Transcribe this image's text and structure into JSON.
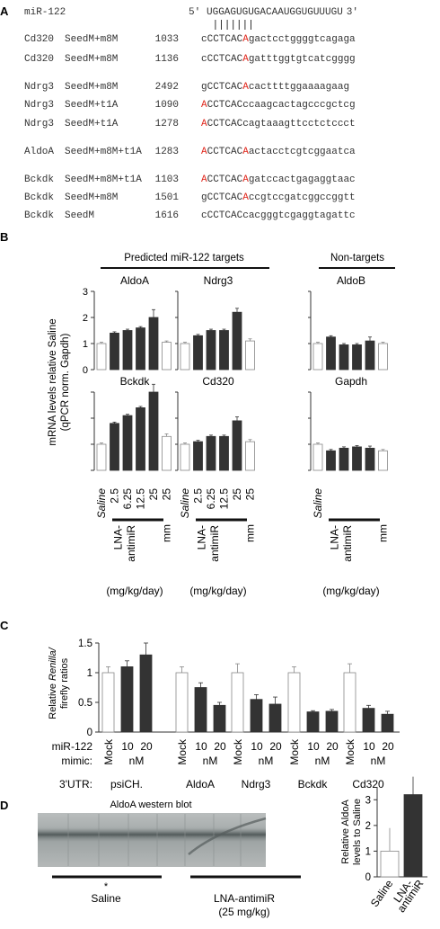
{
  "panelA": {
    "label": "A",
    "mir": {
      "name": "miR-122",
      "five": "5'",
      "seq": "UGGAGUGUGACAAUGGUGUUUGU",
      "three": "3'"
    },
    "rows": [
      {
        "gene": "Cd320",
        "type": "SeedM+m8M",
        "pos": "1033",
        "lower": "c",
        "seed": "CCTCAC",
        "red": "A",
        "rest": "gactcctggggtcagaga"
      },
      {
        "gene": "Cd320",
        "type": "SeedM+m8M",
        "pos": "1136",
        "lower": "c",
        "seed": "CCTCAC",
        "red": "A",
        "rest": "gatttggtgtcatcgggg"
      },
      {
        "gene": "Ndrg3",
        "type": "SeedM+m8M",
        "pos": "2492",
        "lower": "g",
        "seed": "CCTCAC",
        "red": "A",
        "rest": "cacttttggaaaagaag"
      },
      {
        "gene": "Ndrg3",
        "type": "SeedM+t1A",
        "pos": "1090",
        "lower": "",
        "seed": "CCTCAC",
        "red": "A",
        "rest": "ccaagcactagcccgctcg",
        "redFirst": true
      },
      {
        "gene": "Ndrg3",
        "type": "SeedM+t1A",
        "pos": "1278",
        "lower": "",
        "seed": "CCTCAC",
        "red": "A",
        "rest": "cagtaaagttcctctccct",
        "redFirst": true
      },
      {
        "gene": "AldoA",
        "type": "SeedM+m8M+t1A",
        "pos": "1283",
        "lower": "",
        "seed": "CCTCAC",
        "red": "A",
        "rest": "actacctcgtcggaatca",
        "both": true
      },
      {
        "gene": "Bckdk",
        "type": "SeedM+m8M+t1A",
        "pos": "1103",
        "lower": "",
        "seed": "CCTCAC",
        "red": "A",
        "rest": "gatccactgagaggtaac",
        "both": true
      },
      {
        "gene": "Bckdk",
        "type": "SeedM+m8M",
        "pos": "1501",
        "lower": "g",
        "seed": "CCTCAC",
        "red": "A",
        "rest": "ccgtccgatcggccggtt"
      },
      {
        "gene": "Bckdk",
        "type": "SeedM",
        "pos": "1616",
        "lower": "c",
        "seed": "CCTCAC",
        "red": "",
        "rest": "cacgggtcgaggtagattc"
      }
    ]
  },
  "panelB": {
    "label": "B",
    "group_targets": "Predicted miR-122 targets",
    "group_nontargets": "Non-targets",
    "ylabel1": "mRNA levels relative Saline",
    "ylabel2": "(qPCR norm. Gapdh)",
    "yticks": [
      "0",
      "1",
      "2",
      "3"
    ],
    "xcat": {
      "saline": "Saline",
      "lna1": "LNA-",
      "lna2": "antimiR",
      "mm": "mm",
      "doses": [
        "2.5",
        "6.25",
        "12.5",
        "25"
      ],
      "mmdose": "25"
    },
    "unit": "(mg/kg/day)"
  },
  "panelC": {
    "label": "C",
    "ylabel1a": "Relative ",
    "ylabel1b": "Renilla/",
    "ylabel2": "firefly ratios",
    "yticks": [
      "0",
      "0.5",
      "1",
      "1.5"
    ],
    "row1": "miR-122",
    "row2": "mimic:",
    "row3": "3'UTR:",
    "mock": "Mock",
    "d10": "10",
    "d20": "20",
    "nm": "nM",
    "utrs": [
      "psiCH.",
      "AldoA",
      "Ndrg3",
      "Bckdk",
      "Cd320"
    ]
  },
  "panelD": {
    "label": "D",
    "blot_title": "AldoA western blot",
    "asterisk": "*",
    "saline": "Saline",
    "lna": "LNA-antimiR",
    "lna_dose": "(25 mg/kg)",
    "ylabel1": "Relative AldoA",
    "ylabel2": "levels to Saline",
    "yticks": [
      "0",
      "1",
      "2",
      "3"
    ],
    "xcat": [
      "Saline",
      "LNA-",
      "antimiR"
    ]
  },
  "chart_data": [
    {
      "type": "bar",
      "title": "AldoA",
      "categories": [
        "Saline",
        "2.5",
        "6.25",
        "12.5",
        "25",
        "mm 25"
      ],
      "values": [
        1.0,
        1.4,
        1.5,
        1.6,
        2.0,
        1.05
      ],
      "errors": [
        0.05,
        0.05,
        0.05,
        0.05,
        0.3,
        0.05
      ],
      "ylim": [
        0,
        3
      ]
    },
    {
      "type": "bar",
      "title": "Ndrg3",
      "categories": [
        "Saline",
        "2.5",
        "6.25",
        "12.5",
        "25",
        "mm 25"
      ],
      "values": [
        1.0,
        1.3,
        1.5,
        1.5,
        2.2,
        1.1
      ],
      "errors": [
        0.05,
        0.05,
        0.05,
        0.05,
        0.15,
        0.08
      ],
      "ylim": [
        0,
        3
      ]
    },
    {
      "type": "bar",
      "title": "AldoB",
      "categories": [
        "Saline",
        "2.5",
        "6.25",
        "12.5",
        "25",
        "mm 25"
      ],
      "values": [
        1.0,
        1.25,
        0.95,
        0.95,
        1.1,
        1.0
      ],
      "errors": [
        0.05,
        0.05,
        0.05,
        0.05,
        0.15,
        0.05
      ],
      "ylim": [
        0,
        3
      ]
    },
    {
      "type": "bar",
      "title": "Bckdk",
      "categories": [
        "Saline",
        "2.5",
        "6.25",
        "12.5",
        "25",
        "mm 25"
      ],
      "values": [
        1.0,
        1.8,
        2.1,
        2.4,
        3.0,
        1.3
      ],
      "errors": [
        0.05,
        0.05,
        0.05,
        0.05,
        0.3,
        0.1
      ],
      "ylim": [
        0,
        3
      ]
    },
    {
      "type": "bar",
      "title": "Cd320",
      "categories": [
        "Saline",
        "2.5",
        "6.25",
        "12.5",
        "25",
        "mm 25"
      ],
      "values": [
        1.0,
        1.1,
        1.3,
        1.3,
        1.9,
        1.1
      ],
      "errors": [
        0.05,
        0.05,
        0.05,
        0.05,
        0.15,
        0.08
      ],
      "ylim": [
        0,
        3
      ]
    },
    {
      "type": "bar",
      "title": "Gapdh",
      "categories": [
        "Saline",
        "2.5",
        "6.25",
        "12.5",
        "25",
        "mm 25"
      ],
      "values": [
        1.0,
        0.75,
        0.85,
        0.9,
        0.85,
        0.75
      ],
      "errors": [
        0.05,
        0.05,
        0.05,
        0.05,
        0.08,
        0.05
      ],
      "ylim": [
        0,
        3
      ]
    },
    {
      "type": "bar",
      "title": "",
      "categories": [
        "psiCH. Mock",
        "psiCH. 10",
        "psiCH. 20",
        "AldoA Mock",
        "AldoA 10",
        "AldoA 20",
        "Ndrg3 Mock",
        "Ndrg3 10",
        "Ndrg3 20",
        "Bckdk Mock",
        "Bckdk 10",
        "Bckdk 20",
        "Cd320 Mock",
        "Cd320 10",
        "Cd320 20"
      ],
      "values": [
        1.0,
        1.1,
        1.3,
        1.0,
        0.75,
        0.45,
        1.0,
        0.55,
        0.47,
        1.0,
        0.34,
        0.35,
        1.0,
        0.4,
        0.3
      ],
      "errors": [
        0.1,
        0.1,
        0.2,
        0.1,
        0.08,
        0.05,
        0.15,
        0.08,
        0.12,
        0.1,
        0.02,
        0.03,
        0.15,
        0.05,
        0.05
      ],
      "filled": [
        false,
        true,
        true,
        false,
        true,
        true,
        false,
        true,
        true,
        false,
        true,
        true,
        false,
        true,
        true
      ],
      "ylim": [
        0,
        1.5
      ]
    },
    {
      "type": "bar",
      "title": "",
      "categories": [
        "Saline",
        "LNA-antimiR"
      ],
      "values": [
        1.0,
        3.2
      ],
      "errors": [
        0.9,
        0.7
      ],
      "filled": [
        false,
        true
      ],
      "ylim": [
        0,
        3.5
      ]
    }
  ]
}
